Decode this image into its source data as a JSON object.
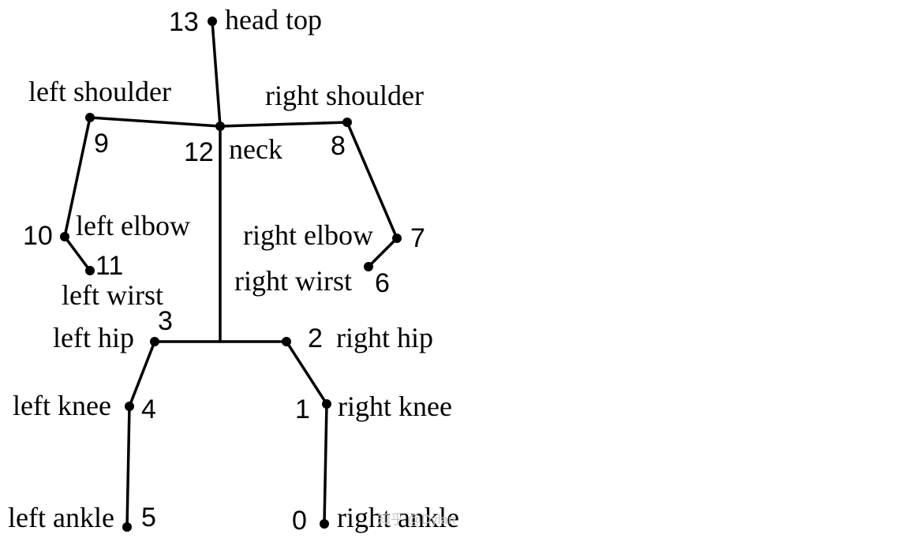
{
  "joints": [
    {
      "id": "0",
      "name": "right ankle"
    },
    {
      "id": "1",
      "name": "right knee"
    },
    {
      "id": "2",
      "name": "right hip"
    },
    {
      "id": "3",
      "name": "left hip"
    },
    {
      "id": "4",
      "name": "left knee"
    },
    {
      "id": "5",
      "name": "left ankle"
    },
    {
      "id": "6",
      "name": "right wirst"
    },
    {
      "id": "7",
      "name": "right elbow"
    },
    {
      "id": "8",
      "name": "right shoulder"
    },
    {
      "id": "9",
      "name": "left shoulder"
    },
    {
      "id": "10",
      "name": "left elbow"
    },
    {
      "id": "11",
      "name": "left wirst"
    },
    {
      "id": "12",
      "name": "neck"
    },
    {
      "id": "13",
      "name": "head top"
    }
  ],
  "watermark": "知乎 @Dylan"
}
